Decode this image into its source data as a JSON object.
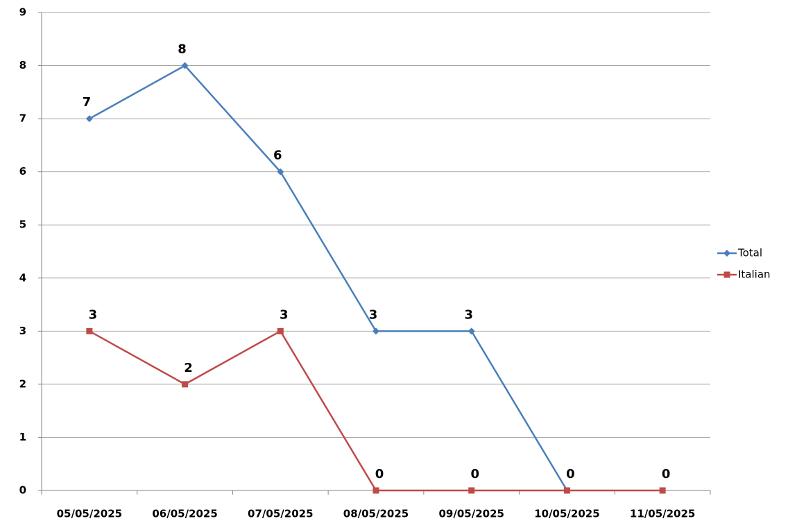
{
  "chart_data": {
    "type": "line",
    "categories": [
      "05/05/2025",
      "06/05/2025",
      "07/05/2025",
      "08/05/2025",
      "09/05/2025",
      "10/05/2025",
      "11/05/2025"
    ],
    "series": [
      {
        "name": "Total",
        "color": "#4a7ebb",
        "marker": "diamond",
        "values": [
          7,
          8,
          6,
          3,
          3,
          0,
          null
        ]
      },
      {
        "name": "Italian",
        "color": "#be4b48",
        "marker": "square",
        "values": [
          3,
          2,
          3,
          0,
          0,
          0,
          0
        ]
      }
    ],
    "ylim": [
      0,
      9
    ],
    "yticks": [
      0,
      1,
      2,
      3,
      4,
      5,
      6,
      7,
      8,
      9
    ],
    "grid": true,
    "legend": "right"
  }
}
